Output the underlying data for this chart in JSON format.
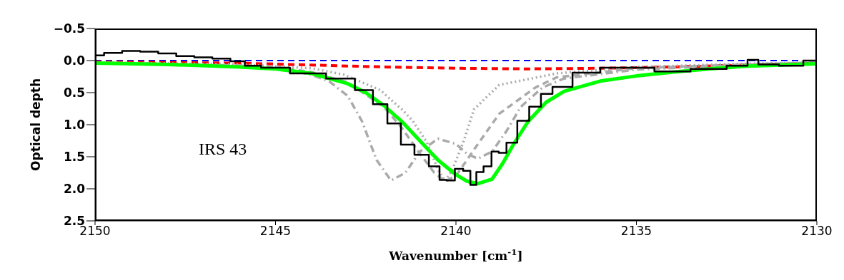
{
  "chart_data": {
    "type": "line",
    "xlabel": "Wavenumber [cm$^{-1}$]",
    "ylabel": "Optical depth",
    "xlim": [
      2150,
      2130
    ],
    "ylim": [
      2.5,
      -0.5
    ],
    "xticks": [
      2150,
      2145,
      2140,
      2135,
      2130
    ],
    "yticks": [
      {
        "value": -0.5,
        "label": "−0.5"
      },
      {
        "value": 0,
        "label": "0.0"
      },
      0.5,
      {
        "value": 1,
        "label": "1.0"
      },
      1.5,
      {
        "value": 2,
        "label": "2.0"
      },
      2.5
    ],
    "marker": "none",
    "annotations": [
      "IRS 43"
    ],
    "series": [
      {
        "color": "#0000ff",
        "line_style": "dashed",
        "x": [
          2150,
          2130
        ],
        "values": [
          0,
          0
        ]
      },
      {
        "color": "#ff0000",
        "line_style": "dashed",
        "x": [
          2150,
          2146,
          2144,
          2142,
          2140,
          2138,
          2136,
          2134,
          2132,
          2130
        ],
        "values": [
          0.02,
          0.04,
          0.07,
          0.1,
          0.12,
          0.13,
          0.12,
          0.1,
          0.07,
          0.04
        ]
      },
      {
        "color": "#aaaaaa",
        "line_style": "dotted",
        "x": [
          2150,
          2146,
          2144,
          2143.1,
          2142.1,
          2141.5,
          2141.2,
          2140.8,
          2140.5,
          2140.3,
          2140.1,
          2139.8,
          2139.5,
          2138.8,
          2137.2,
          2135,
          2132,
          2130
        ],
        "values": [
          0.03,
          0.06,
          0.12,
          0.22,
          0.46,
          0.76,
          0.94,
          1.28,
          1.7,
          1.88,
          1.7,
          1.28,
          0.76,
          0.38,
          0.2,
          0.1,
          0.05,
          0.03
        ]
      },
      {
        "color": "#aaaaaa",
        "line_style": "dashed",
        "x": [
          2150,
          2146,
          2145,
          2144,
          2143,
          2142,
          2141.5,
          2141,
          2140.6,
          2140.3,
          2140,
          2139.5,
          2138.8,
          2137.8,
          2137.2,
          2135,
          2132,
          2130
        ],
        "values": [
          0.03,
          0.08,
          0.1,
          0.18,
          0.34,
          0.72,
          1.05,
          1.45,
          1.75,
          1.88,
          1.8,
          1.39,
          0.83,
          0.42,
          0.26,
          0.12,
          0.06,
          0.03
        ]
      },
      {
        "color": "#aaaaaa",
        "line_style": "dashdot",
        "x": [
          2150,
          2146,
          2145,
          2144,
          2143.5,
          2143,
          2142.6,
          2142.2,
          2141.8,
          2141.4,
          2141,
          2140.5,
          2140,
          2139.7,
          2139.4,
          2139,
          2138.6,
          2138.2,
          2137.6,
          2137,
          2135,
          2132,
          2130
        ],
        "values": [
          0.03,
          0.08,
          0.12,
          0.22,
          0.33,
          0.55,
          0.95,
          1.55,
          1.87,
          1.75,
          1.42,
          1.22,
          1.3,
          1.45,
          1.53,
          1.42,
          1.1,
          0.72,
          0.42,
          0.28,
          0.14,
          0.07,
          0.04
        ]
      },
      {
        "color": "#00ff00",
        "line_style": "solid",
        "x": [
          2150,
          2148,
          2146,
          2145,
          2144,
          2143,
          2142.5,
          2142,
          2141.5,
          2141,
          2140.5,
          2140,
          2139.7,
          2139.4,
          2139,
          2138.7,
          2138.4,
          2138,
          2137.5,
          2137,
          2136,
          2135,
          2134,
          2133,
          2132,
          2130
        ],
        "values": [
          0.04,
          0.06,
          0.1,
          0.13,
          0.2,
          0.36,
          0.5,
          0.7,
          0.95,
          1.25,
          1.55,
          1.78,
          1.88,
          1.92,
          1.85,
          1.6,
          1.3,
          0.95,
          0.65,
          0.48,
          0.32,
          0.24,
          0.18,
          0.13,
          0.09,
          0.05
        ]
      },
      {
        "type": "step",
        "color": "#000000",
        "line_style": "solid",
        "x": [
          2150,
          2149.5,
          2149,
          2148.5,
          2148,
          2147.5,
          2147,
          2146.5,
          2146,
          2145.7,
          2145.1,
          2144.1,
          2143.1,
          2142.5,
          2142.1,
          2141.7,
          2141.35,
          2140.95,
          2140.55,
          2140.36,
          2140.16,
          2139.9,
          2139.7,
          2139.5,
          2139.37,
          2139.1,
          2138.93,
          2138.7,
          2138.5,
          2138.1,
          2137.84,
          2137.45,
          2137.2,
          2136.34,
          2135.66,
          2135,
          2134,
          2133,
          2132,
          2131.84,
          2131.4,
          2130.7,
          2130.05
        ],
        "values": [
          -0.08,
          -0.12,
          -0.15,
          -0.14,
          -0.11,
          -0.07,
          -0.05,
          -0.03,
          0.01,
          0.08,
          0.11,
          0.2,
          0.28,
          0.46,
          0.68,
          0.98,
          1.31,
          1.47,
          1.65,
          1.86,
          1.87,
          1.69,
          1.72,
          1.94,
          1.74,
          1.65,
          1.42,
          1.44,
          1.28,
          0.94,
          0.72,
          0.52,
          0.41,
          0.19,
          0.11,
          0.11,
          0.17,
          0.13,
          0.08,
          -0.01,
          0.06,
          0.08,
          0
        ]
      }
    ]
  }
}
